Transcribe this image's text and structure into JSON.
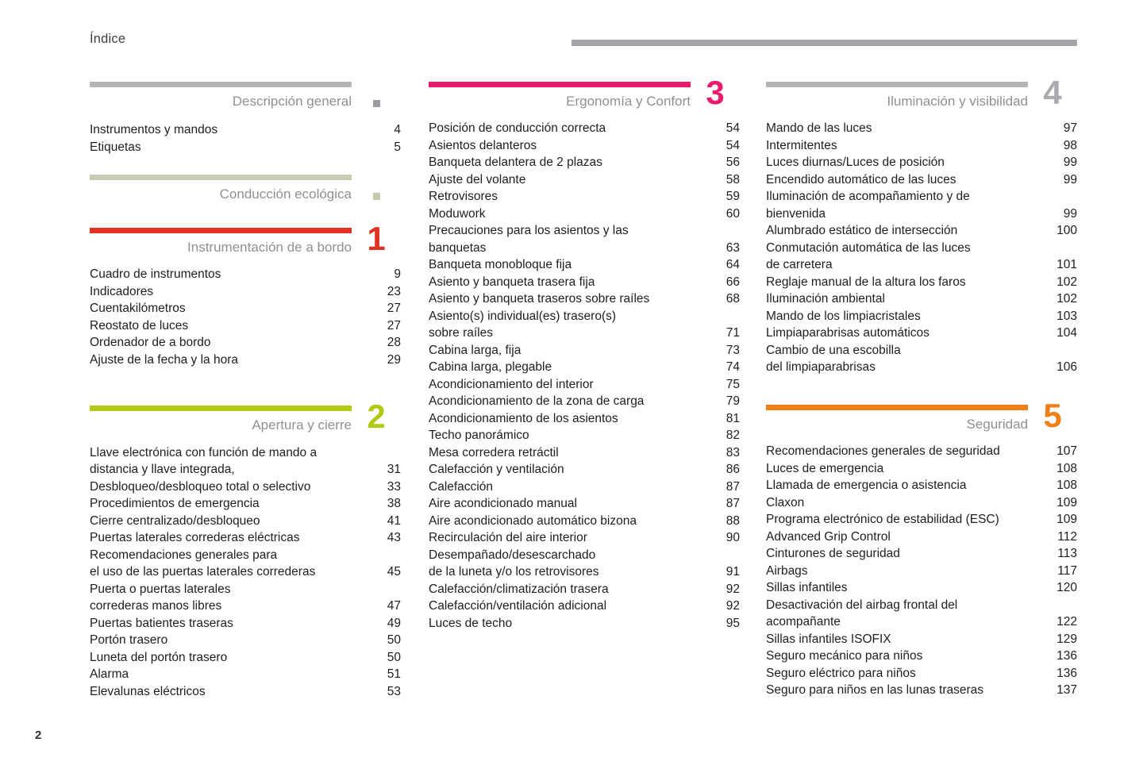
{
  "page": {
    "title": "Índice",
    "page_number": "2"
  },
  "decor": {
    "top_bar_color": "#a2a4a7"
  },
  "sections": {
    "descripcion_general": {
      "title": "Descripción general",
      "accent": "#b2b4b6",
      "marker_color": "#9b9da0",
      "entries": [
        {
          "label": "Instrumentos y mandos",
          "page": "4"
        },
        {
          "label": "Etiquetas",
          "page": "5"
        }
      ]
    },
    "conduccion_ecologica": {
      "title": "Conducción ecológica",
      "accent": "#c9cbb2",
      "marker_color": "#c6c8ae",
      "entries": []
    },
    "instrumentacion": {
      "title": "Instrumentación de a bordo",
      "accent": "#e03123",
      "number": "1",
      "entries": [
        {
          "label": "Cuadro de instrumentos",
          "page": "9"
        },
        {
          "label": "Indicadores",
          "page": "23"
        },
        {
          "label": "Cuentakilómetros",
          "page": "27"
        },
        {
          "label": "Reostato de luces",
          "page": "27"
        },
        {
          "label": "Ordenador de a bordo",
          "page": "28"
        },
        {
          "label": "Ajuste de la fecha y la hora",
          "page": "29"
        }
      ]
    },
    "apertura": {
      "title": "Apertura y cierre",
      "accent": "#b2c912",
      "number": "2",
      "entries": [
        {
          "label": "Llave electrónica con función de mando a\ndistancia y llave integrada,",
          "page": "31"
        },
        {
          "label": "Desbloqueo/desbloqueo total o selectivo",
          "page": "33"
        },
        {
          "label": "Procedimientos de emergencia",
          "page": "38"
        },
        {
          "label": "Cierre centralizado/desbloqueo",
          "page": "41"
        },
        {
          "label": "Puertas laterales correderas eléctricas",
          "page": "43"
        },
        {
          "label": "Recomendaciones generales para\nel uso de las puertas laterales correderas",
          "page": "45"
        },
        {
          "label": "Puerta o puertas laterales\ncorrederas manos libres",
          "page": "47"
        },
        {
          "label": "Puertas batientes traseras",
          "page": "49"
        },
        {
          "label": "Portón trasero",
          "page": "50"
        },
        {
          "label": "Luneta del portón trasero",
          "page": "50"
        },
        {
          "label": "Alarma",
          "page": "51"
        },
        {
          "label": "Elevalunas eléctricos",
          "page": "53"
        }
      ]
    },
    "ergonomia": {
      "title": "Ergonomía y Confort",
      "accent": "#ea1b6d",
      "number": "3",
      "entries": [
        {
          "label": "Posición de conducción correcta",
          "page": "54"
        },
        {
          "label": "Asientos delanteros",
          "page": "54"
        },
        {
          "label": "Banqueta delantera de 2 plazas",
          "page": "56"
        },
        {
          "label": "Ajuste del volante",
          "page": "58"
        },
        {
          "label": "Retrovisores",
          "page": "59"
        },
        {
          "label": "Moduwork",
          "page": "60"
        },
        {
          "label": "Precauciones para los asientos y las\nbanquetas",
          "page": "63"
        },
        {
          "label": "Banqueta monobloque fija",
          "page": "64"
        },
        {
          "label": "Asiento y banqueta trasera fija",
          "page": "66"
        },
        {
          "label": "Asiento y banqueta traseros sobre raíles",
          "page": "68"
        },
        {
          "label": "Asiento(s) individual(es) trasero(s)\nsobre raíles",
          "page": "71"
        },
        {
          "label": "Cabina larga, fija",
          "page": "73"
        },
        {
          "label": "Cabina larga, plegable",
          "page": "74"
        },
        {
          "label": "Acondicionamiento del interior",
          "page": "75"
        },
        {
          "label": "Acondicionamiento de la zona de carga",
          "page": "79"
        },
        {
          "label": "Acondicionamiento de los asientos",
          "page": "81"
        },
        {
          "label": "Techo panorámico",
          "page": "82"
        },
        {
          "label": "Mesa corredera retráctil",
          "page": "83"
        },
        {
          "label": "Calefacción y ventilación",
          "page": "86"
        },
        {
          "label": "Calefacción",
          "page": "87"
        },
        {
          "label": "Aire acondicionado manual",
          "page": "87"
        },
        {
          "label": "Aire acondicionado automático bizona",
          "page": "88"
        },
        {
          "label": "Recirculación del aire interior",
          "page": "90"
        },
        {
          "label": "Desempañado/desescarchado\nde la luneta y/o los retrovisores",
          "page": "91"
        },
        {
          "label": "Calefacción/climatización trasera",
          "page": "92"
        },
        {
          "label": "Calefacción/ventilación adicional",
          "page": "92"
        },
        {
          "label": "Luces de techo",
          "page": "95"
        }
      ]
    },
    "iluminacion": {
      "title": "Iluminación y visibilidad",
      "accent": "#b2b4b6",
      "number": "4",
      "number_color": "#a9abae",
      "entries": [
        {
          "label": "Mando de las luces",
          "page": "97"
        },
        {
          "label": "Intermitentes",
          "page": "98"
        },
        {
          "label": "Luces diurnas/Luces de posición",
          "page": "99"
        },
        {
          "label": "Encendido automático de las luces",
          "page": "99"
        },
        {
          "label": "Iluminación de acompañamiento y de\nbienvenida",
          "page": "99"
        },
        {
          "label": "Alumbrado estático de intersección",
          "page": "100"
        },
        {
          "label": "Conmutación automática de las luces\nde carretera",
          "page": "101"
        },
        {
          "label": "Reglaje manual de la altura los faros",
          "page": "102"
        },
        {
          "label": "Iluminación ambiental",
          "page": "102"
        },
        {
          "label": "Mando de los limpiacristales",
          "page": "103"
        },
        {
          "label": "Limpiaparabrisas automáticos",
          "page": "104"
        },
        {
          "label": "Cambio de una escobilla\ndel limpiaparabrisas",
          "page": "106"
        }
      ]
    },
    "seguridad": {
      "title": "Seguridad",
      "accent": "#ef7f16",
      "number": "5",
      "entries": [
        {
          "label": "Recomendaciones generales de seguridad",
          "page": "107"
        },
        {
          "label": "Luces de emergencia",
          "page": "108"
        },
        {
          "label": "Llamada de emergencia o asistencia",
          "page": "108"
        },
        {
          "label": "Claxon",
          "page": "109"
        },
        {
          "label": "Programa electrónico de estabilidad (ESC)",
          "page": "109"
        },
        {
          "label": "Advanced Grip Control",
          "page": "112"
        },
        {
          "label": "Cinturones de seguridad",
          "page": "113"
        },
        {
          "label": "Airbags",
          "page": "117"
        },
        {
          "label": "Sillas infantiles",
          "page": "120"
        },
        {
          "label": "Desactivación del airbag frontal del\nacompañante",
          "page": "122"
        },
        {
          "label": "Sillas infantiles ISOFIX",
          "page": "129"
        },
        {
          "label": "Seguro mecánico para niños",
          "page": "136"
        },
        {
          "label": "Seguro eléctrico para niños",
          "page": "136"
        },
        {
          "label": "Seguro para niños en las lunas traseras",
          "page": "137"
        }
      ]
    }
  }
}
